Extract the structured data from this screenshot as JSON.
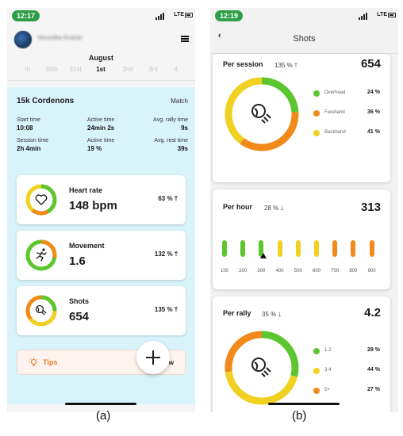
{
  "colors": {
    "green": "#5cc62e",
    "yellow": "#f0d020",
    "orange": "#f08a1a"
  },
  "phone_a": {
    "status_time": "12:17",
    "network": "LTE",
    "user_name": "Veronika Kraner",
    "month": "August",
    "days": [
      "th",
      "30th",
      "31st",
      "1st",
      "2nd",
      "3rd",
      "4"
    ],
    "selected_day_index": 3,
    "session": {
      "title": "15k Cordenons",
      "sport": "Match",
      "stats": [
        {
          "label": "Start time",
          "value": "10:08"
        },
        {
          "label": "Active time",
          "value": "24min 2s"
        },
        {
          "label": "Avg. rally time",
          "value": "9s"
        },
        {
          "label": "Session time",
          "value": "2h 4min"
        },
        {
          "label": "Active time",
          "value": "19 %"
        },
        {
          "label": "Avg. rest time",
          "value": "39s"
        }
      ]
    },
    "cards": [
      {
        "label": "Heart rate",
        "value": "148 bpm",
        "pct": "63 %",
        "icon": "heart-icon"
      },
      {
        "label": "Movement",
        "value": "1.6",
        "pct": "132 %",
        "icon": "running-icon"
      },
      {
        "label": "Shots",
        "value": "654",
        "pct": "135 %",
        "icon": "ball-icon"
      }
    ],
    "tips": "Tips",
    "tips_trail": "w"
  },
  "phone_b": {
    "status_time": "12:19",
    "network": "LTE",
    "title": "Shots",
    "per_session": {
      "label": "Per session",
      "pct": "135 %",
      "value": "654",
      "legend": [
        {
          "name": "Overhead",
          "value": "24 %",
          "fraction": 0.24,
          "color": "#5cc62e"
        },
        {
          "name": "Forehand",
          "value": "36 %",
          "fraction": 0.36,
          "color": "#f08a1a"
        },
        {
          "name": "Backhand",
          "value": "41 %",
          "fraction": 0.41,
          "color": "#f0d020"
        }
      ]
    },
    "per_hour": {
      "label": "Per hour",
      "pct": "28 %",
      "value": "313",
      "ticks": [
        "100",
        "200",
        "300",
        "400",
        "500",
        "600",
        "700",
        "800",
        "900"
      ],
      "marker_value": 313
    },
    "per_rally": {
      "label": "Per rally",
      "pct": "35 %",
      "value": "4.2",
      "legend": [
        {
          "name": "1-2",
          "value": "29 %",
          "fraction": 0.29,
          "color": "#5cc62e"
        },
        {
          "name": "3-4",
          "value": "44 %",
          "fraction": 0.44,
          "color": "#f0d020"
        },
        {
          "name": "5+",
          "value": "27 %",
          "fraction": 0.27,
          "color": "#f08a1a"
        }
      ]
    }
  },
  "captions": [
    "(a)",
    "(b)"
  ]
}
